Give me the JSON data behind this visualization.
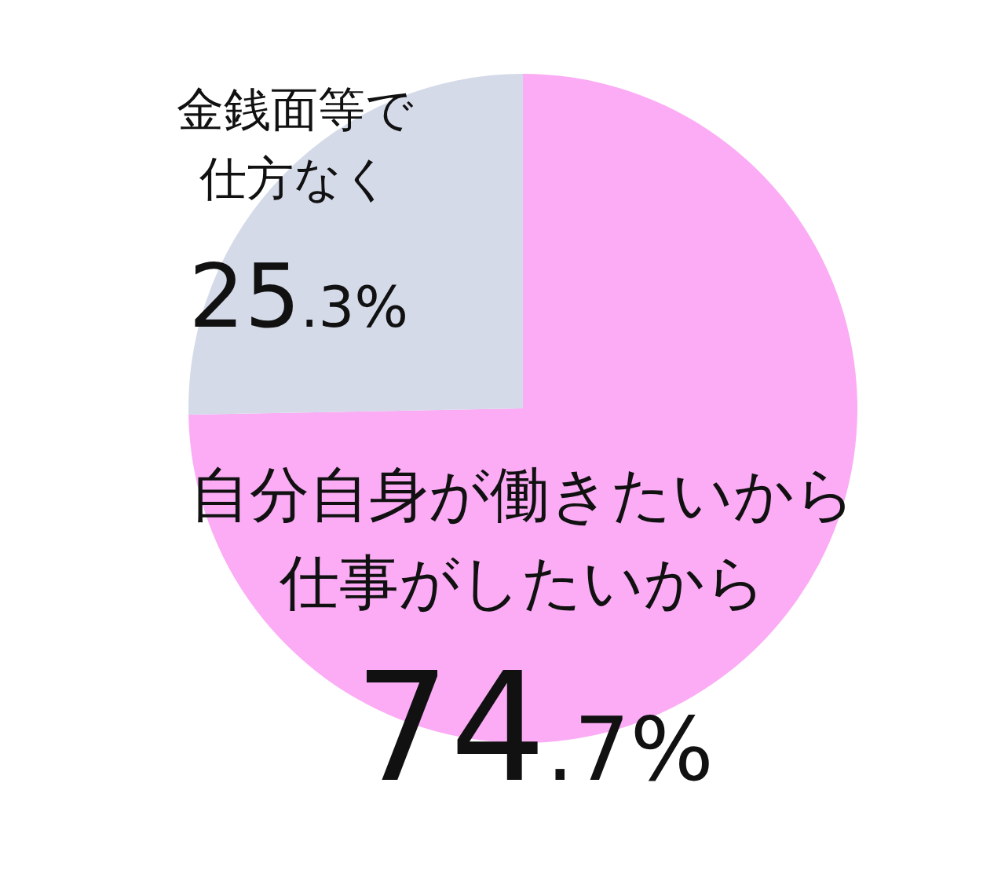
{
  "chart_data": {
    "type": "pie",
    "categories": [
      "自分自身が働きたいから仕事がしたいから",
      "金銭面等で仕方なく"
    ],
    "values": [
      74.7,
      25.3
    ],
    "colors": [
      "#fbacf5",
      "#d4dae8"
    ],
    "value_labels": [
      "74.7%",
      "25.3%"
    ],
    "legend": false
  }
}
